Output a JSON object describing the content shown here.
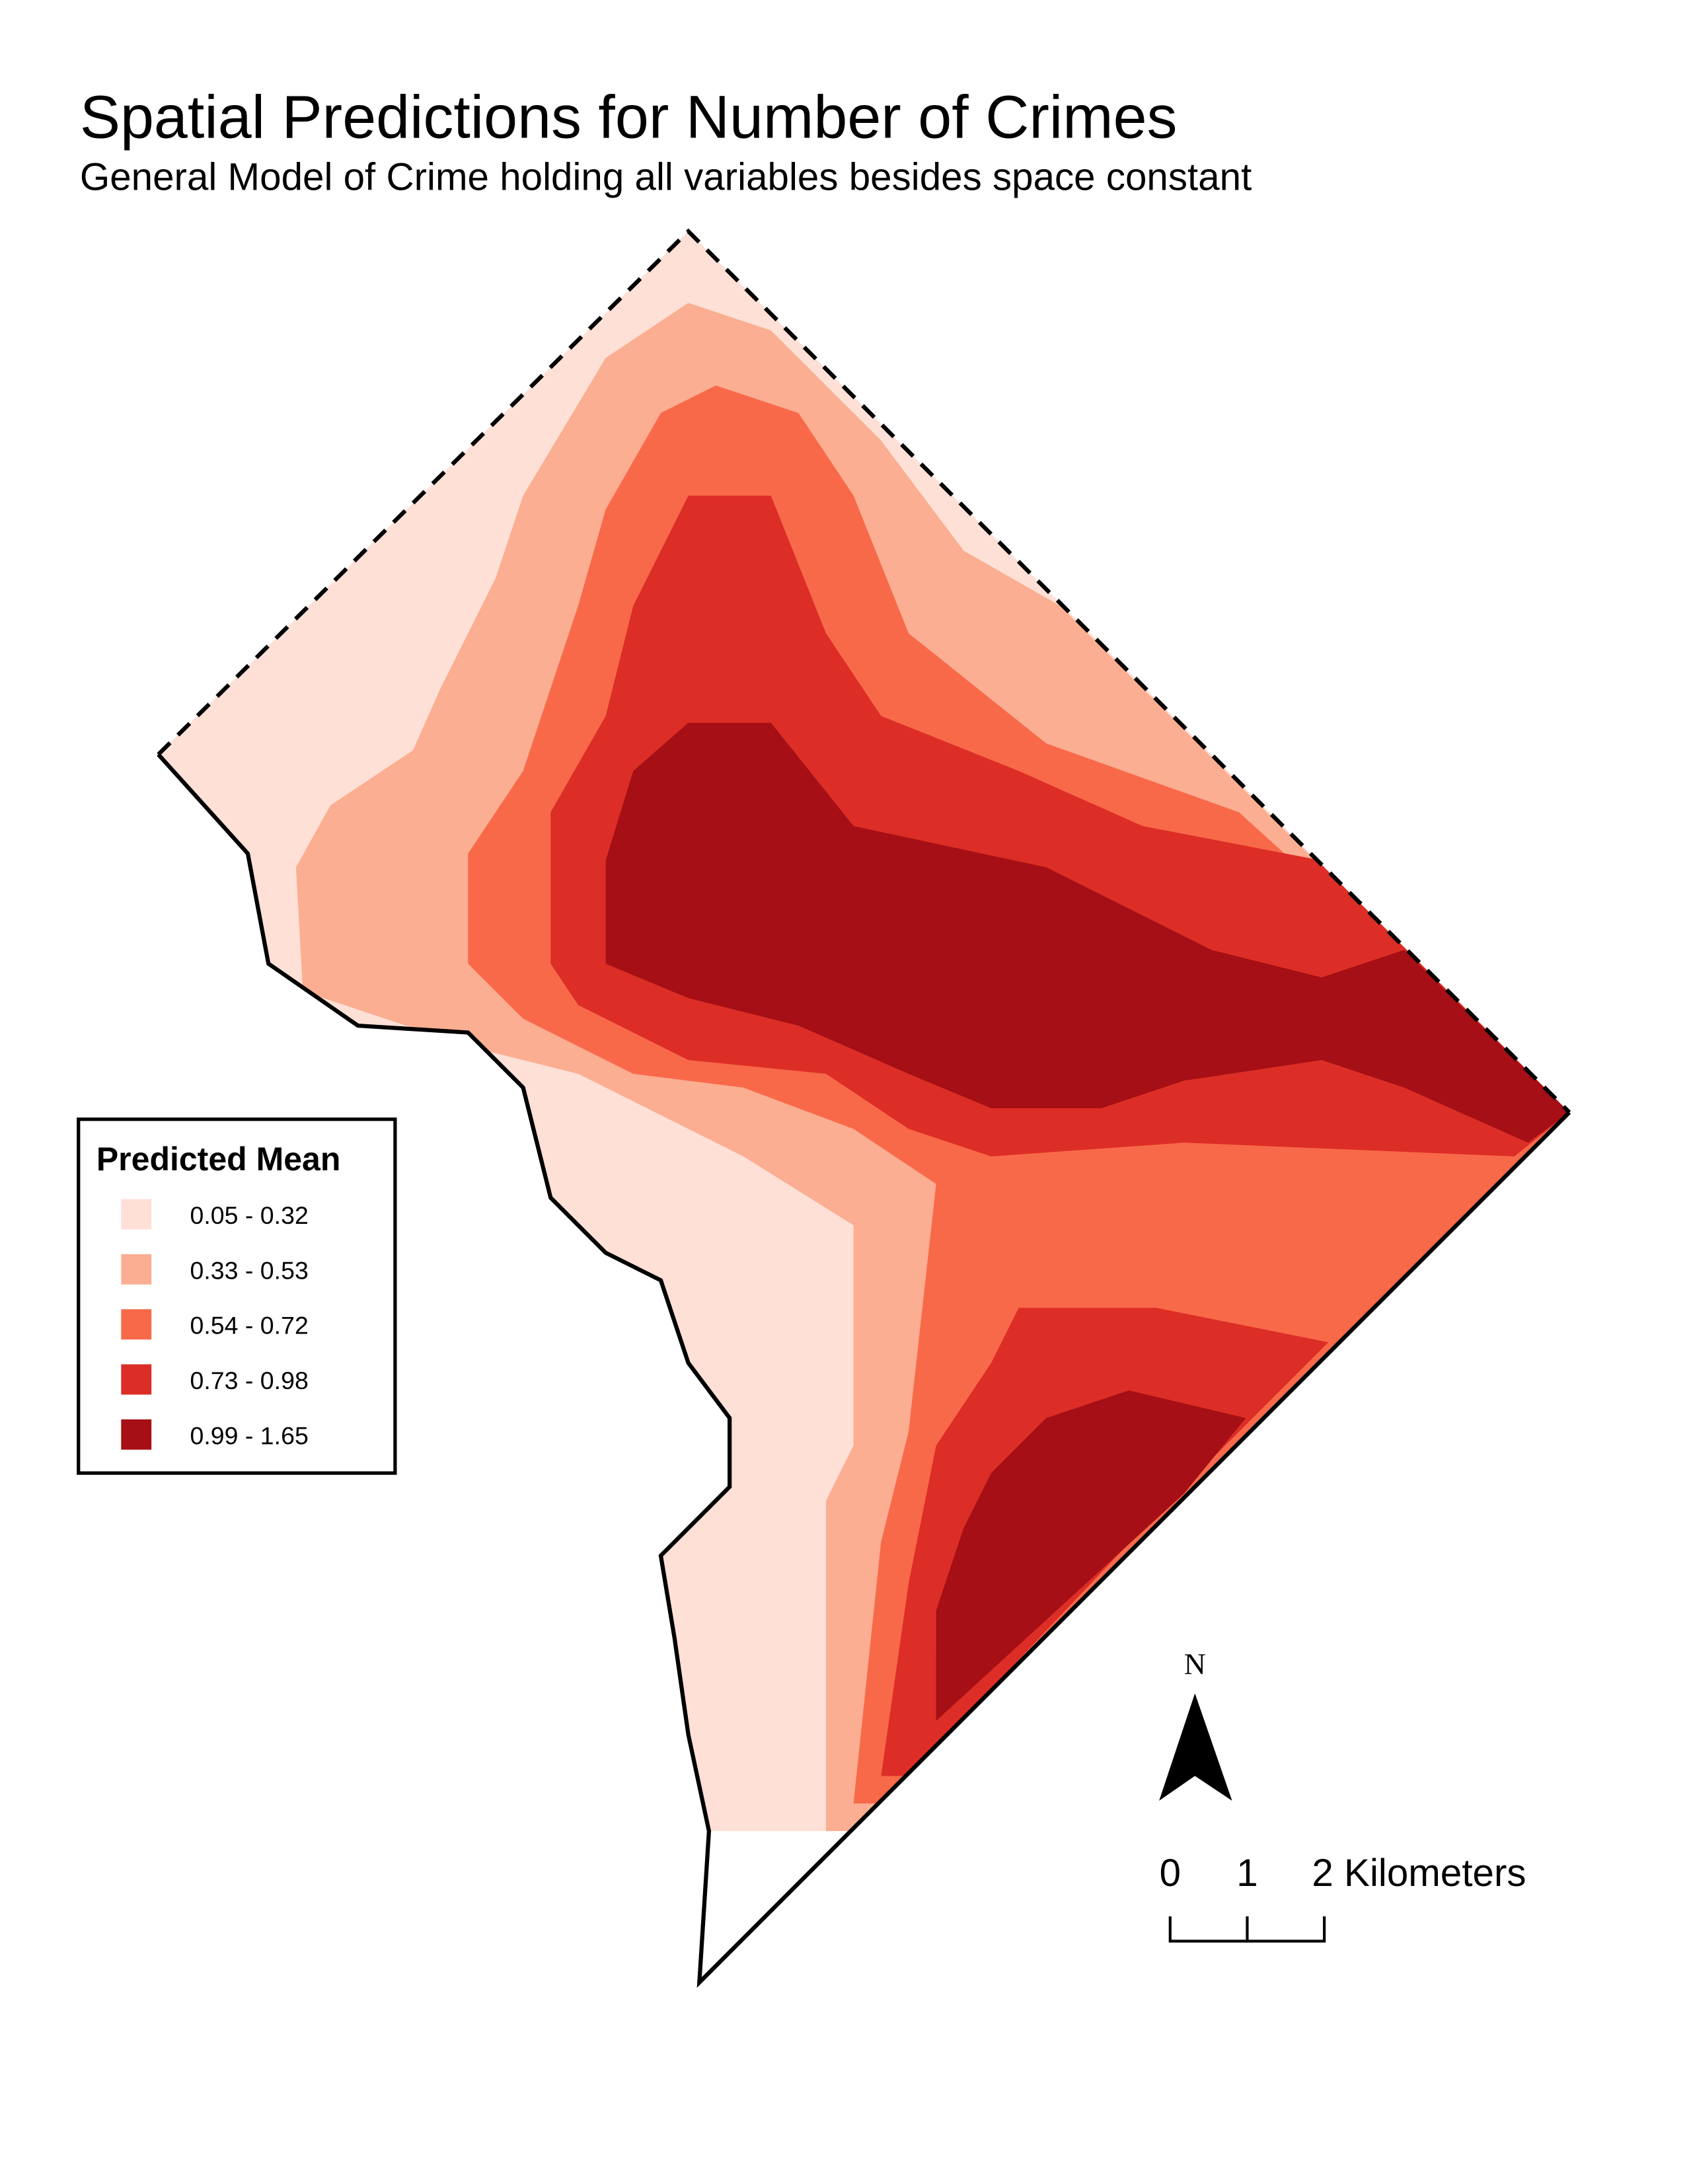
{
  "title": "Spatial Predictions for Number of Crimes",
  "subtitle": "General Model of Crime holding all variables besides space constant",
  "legend": {
    "title": "Predicted Mean",
    "items": [
      {
        "label": "0.05 - 0.32",
        "color": "#fee0d6"
      },
      {
        "label": "0.33 - 0.53",
        "color": "#fbae91"
      },
      {
        "label": "0.54 - 0.72",
        "color": "#f8694a"
      },
      {
        "label": "0.73 - 0.98",
        "color": "#dc2e26"
      },
      {
        "label": "0.99 - 1.65",
        "color": "#a50f15"
      }
    ]
  },
  "north_arrow": {
    "label": "N"
  },
  "scale_bar": {
    "labels": [
      "0",
      "1",
      "2 Kilometers"
    ]
  }
}
